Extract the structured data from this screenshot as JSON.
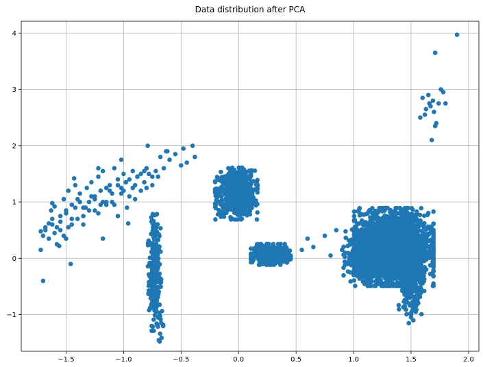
{
  "chart_data": {
    "type": "scatter",
    "title": "Data distribution after PCA",
    "xlabel": "",
    "ylabel": "",
    "xlim": [
      -1.89,
      2.09
    ],
    "ylim": [
      -1.65,
      4.21
    ],
    "x_ticks": [
      -1.5,
      -1.0,
      -0.5,
      0.0,
      0.5,
      1.0,
      1.5,
      2.0
    ],
    "x_tick_labels": [
      "−1.5",
      "−1.0",
      "−0.5",
      "0.0",
      "0.5",
      "1.0",
      "1.5",
      "2.0"
    ],
    "y_ticks": [
      -1,
      0,
      1,
      2,
      3,
      4
    ],
    "y_tick_labels": [
      "−1",
      "0",
      "1",
      "2",
      "3",
      "4"
    ],
    "grid": true,
    "marker_color": "#1f77b4",
    "points_x": [
      -1.72,
      -1.7,
      -1.72,
      -1.68,
      -1.65,
      -1.63,
      -1.62,
      -1.6,
      -1.58,
      -1.55,
      -1.52,
      -1.5,
      -1.48,
      -1.45,
      -1.42,
      -1.4,
      -1.38,
      -1.35,
      -1.32,
      -1.3,
      -1.28,
      -1.25,
      -1.22,
      -1.2,
      -1.18,
      -1.15,
      -1.12,
      -1.1,
      -1.08,
      -1.05,
      -1.02,
      -1.0,
      -0.98,
      -0.95,
      -0.92,
      -0.9,
      -0.88,
      -0.85,
      -0.82,
      -0.8,
      -0.78,
      -0.75,
      -0.72,
      -0.7,
      -0.68,
      -0.65,
      -0.62,
      -0.6,
      -0.55,
      -0.5,
      -0.48,
      -0.45,
      -0.4,
      -0.38,
      -1.68,
      -1.6,
      -1.55,
      -1.5,
      -1.45,
      -1.42,
      -1.38,
      -1.35,
      -1.3,
      -1.25,
      -1.2,
      -1.15,
      -1.1,
      -1.05,
      -1.0,
      -0.95,
      -0.9,
      -0.85,
      -0.8,
      -0.75,
      -1.65,
      -1.58,
      -1.52,
      -1.48,
      -1.4,
      -1.33,
      -1.28,
      -1.22,
      -1.18,
      -1.12,
      -1.08,
      -1.02,
      -0.98,
      -0.92,
      -0.88,
      -0.82,
      -1.62,
      -1.55,
      -1.5,
      -1.45,
      -1.35,
      -1.25,
      -1.15,
      -1.05,
      -0.97,
      -1.7,
      -1.46,
      -1.22,
      -1.02,
      -0.79,
      -1.62,
      -1.43,
      -1.56,
      -1.18,
      -0.96,
      -0.63
    ],
    "points_y": [
      0.15,
      0.4,
      0.48,
      0.55,
      0.62,
      0.85,
      0.7,
      0.92,
      0.55,
      0.75,
      1.05,
      0.85,
      1.2,
      0.95,
      1.3,
      1.05,
      1.15,
      0.9,
      1.25,
      1.0,
      1.35,
      1.1,
      1.45,
      1.2,
      1.55,
      1.0,
      1.3,
      1.15,
      1.6,
      1.4,
      1.25,
      1.5,
      1.35,
      1.1,
      1.55,
      1.3,
      1.45,
      1.2,
      1.35,
      1.6,
      1.5,
      1.3,
      1.55,
      1.45,
      1.8,
      1.6,
      1.9,
      1.75,
      1.85,
      1.65,
      1.95,
      1.7,
      2.0,
      1.8,
      0.5,
      0.45,
      0.65,
      0.8,
      0.6,
      0.9,
      1.0,
      0.75,
      0.85,
      1.05,
      0.95,
      1.25,
      1.0,
      1.3,
      1.2,
      1.4,
      1.05,
      1.5,
      1.25,
      1.45,
      0.35,
      0.25,
      0.4,
      0.55,
      0.7,
      0.9,
      1.1,
      0.8,
      1.0,
      1.2,
      0.95,
      1.15,
      1.35,
      1.25,
      1.45,
      1.55,
      0.6,
      0.5,
      0.35,
      0.7,
      0.6,
      0.85,
      0.95,
      0.75,
      0.9,
      -0.4,
      -0.1,
      1.6,
      1.75,
      2.0,
      0.98,
      1.42,
      0.22,
      0.35,
      0.62,
      1.9
    ],
    "clusters": [
      {
        "cx": -0.73,
        "cy": -0.25,
        "sx": 0.025,
        "sy": 0.45,
        "n": 260
      },
      {
        "cx": -0.73,
        "cy": 0.5,
        "sx": 0.015,
        "sy": 0.12,
        "n": 25
      },
      {
        "cx": -0.68,
        "cy": -1.2,
        "sx": 0.015,
        "sy": 0.12,
        "n": 12
      },
      {
        "cx": -0.02,
        "cy": 1.15,
        "sx": 0.08,
        "sy": 0.2,
        "n": 700
      },
      {
        "cx": 0.28,
        "cy": 0.07,
        "sx": 0.075,
        "sy": 0.08,
        "n": 450
      },
      {
        "cx": 1.35,
        "cy": 0.2,
        "sx": 0.15,
        "sy": 0.3,
        "n": 2600
      },
      {
        "cx": 1.12,
        "cy": 0.05,
        "sx": 0.09,
        "sy": 0.2,
        "n": 500
      },
      {
        "cx": 1.5,
        "cy": -0.35,
        "sx": 0.05,
        "sy": 0.28,
        "n": 350
      }
    ],
    "outliers_x": [
      1.9,
      1.71,
      1.71,
      1.74,
      1.76,
      1.78,
      1.8,
      1.63,
      1.65,
      1.67,
      1.69,
      1.62,
      1.58,
      1.6,
      1.7,
      1.68,
      1.66,
      1.72,
      0.6,
      0.65,
      0.55,
      0.75,
      0.85,
      0.8,
      0.9,
      0.95,
      1.52,
      1.5,
      1.54,
      1.48
    ],
    "outliers_y": [
      3.97,
      3.65,
      2.35,
      2.75,
      3.0,
      2.95,
      2.75,
      2.65,
      2.9,
      2.7,
      2.8,
      2.55,
      2.5,
      2.85,
      2.6,
      2.1,
      2.75,
      2.4,
      0.35,
      0.2,
      0.15,
      0.4,
      0.5,
      0.05,
      0.15,
      -0.1,
      -1.1,
      -1.05,
      -0.95,
      -1.15
    ]
  }
}
